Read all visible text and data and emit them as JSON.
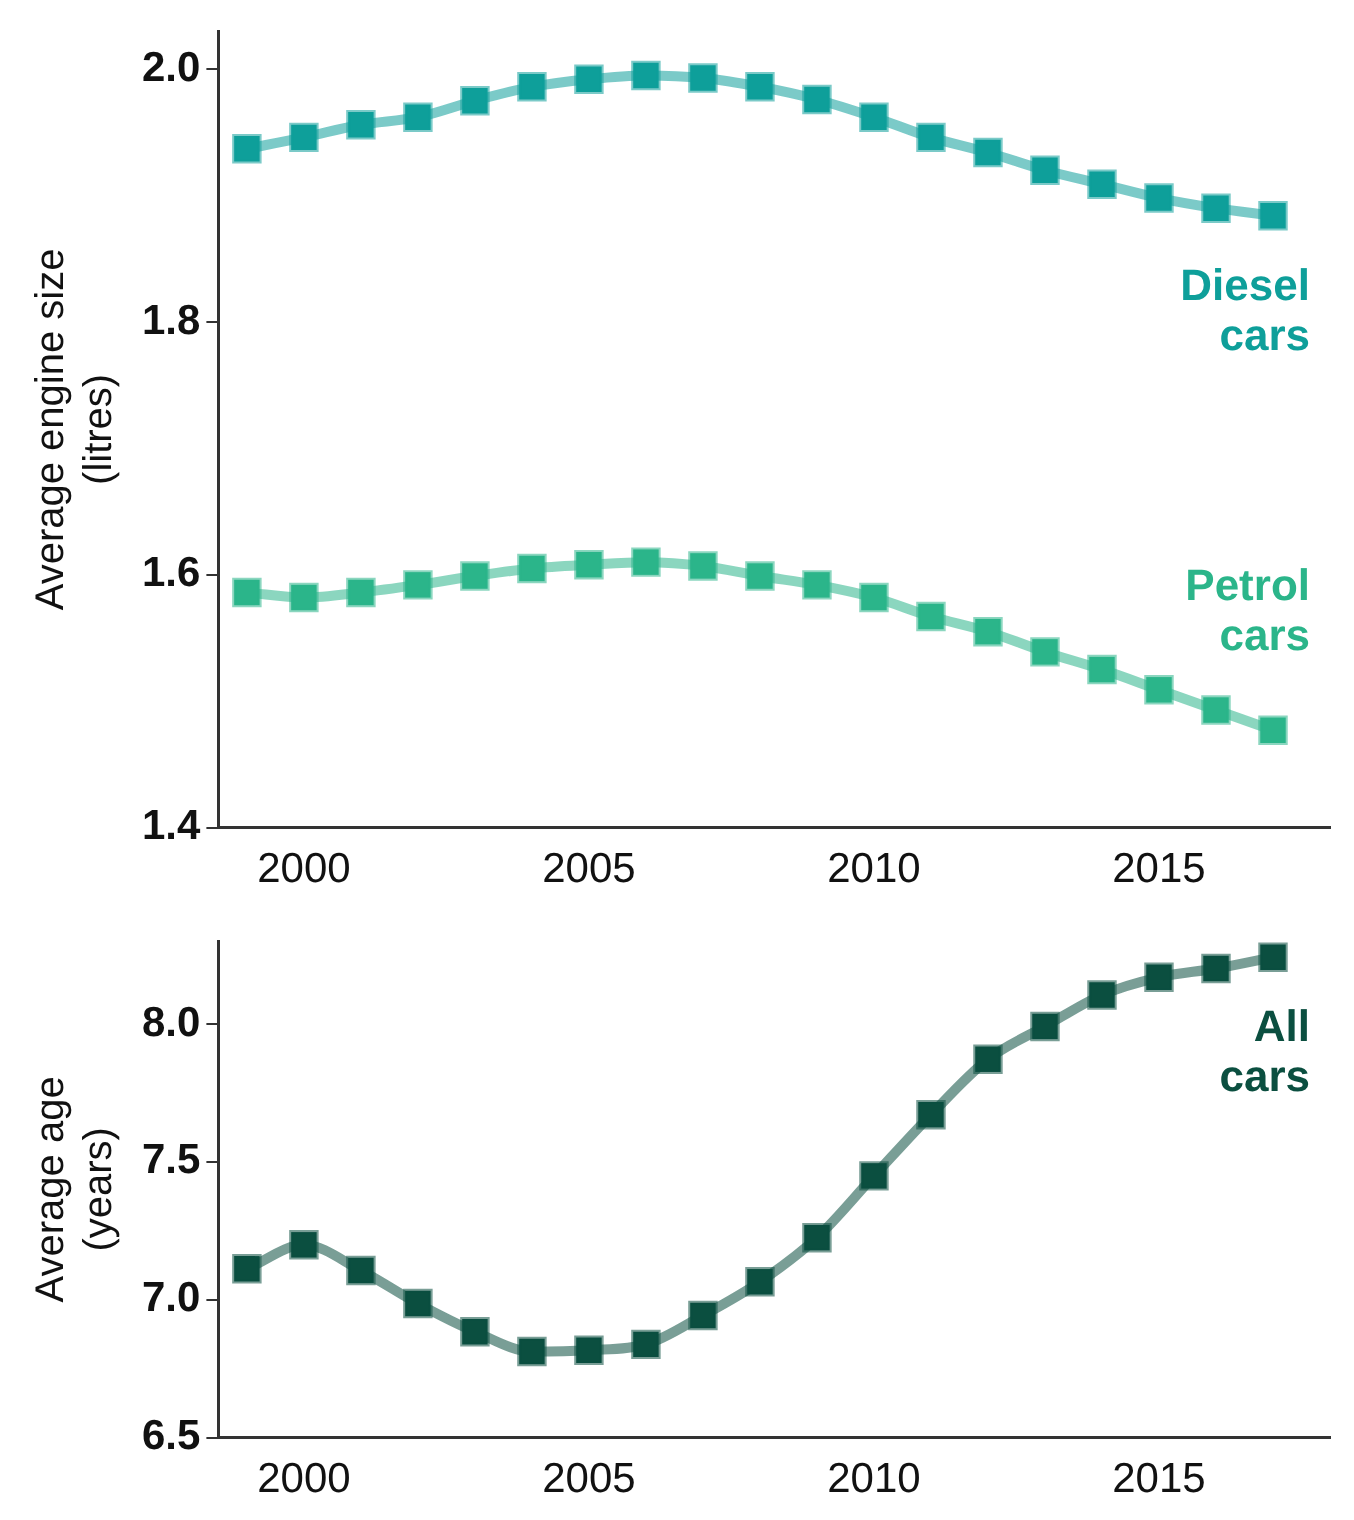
{
  "chart_data": [
    {
      "type": "line",
      "ylabel": "Average engine size\n(litres)",
      "x": [
        1999,
        2000,
        2001,
        2002,
        2003,
        2004,
        2005,
        2006,
        2007,
        2008,
        2009,
        2010,
        2011,
        2012,
        2013,
        2014,
        2015,
        2016,
        2017
      ],
      "series": [
        {
          "name": "Diesel\ncars",
          "color": "#0e9f9a",
          "values": [
            1.937,
            1.946,
            1.956,
            1.962,
            1.975,
            1.986,
            1.992,
            1.995,
            1.993,
            1.986,
            1.976,
            1.962,
            1.946,
            1.934,
            1.92,
            1.909,
            1.898,
            1.89,
            1.884
          ]
        },
        {
          "name": "Petrol\ncars",
          "color": "#2bb58a",
          "values": [
            1.586,
            1.582,
            1.586,
            1.592,
            1.599,
            1.605,
            1.608,
            1.61,
            1.607,
            1.599,
            1.592,
            1.582,
            1.567,
            1.555,
            1.539,
            1.525,
            1.509,
            1.493,
            1.477
          ]
        }
      ],
      "xlim": [
        1998.5,
        2018
      ],
      "xticks": [
        2000,
        2005,
        2010,
        2015
      ],
      "ylim": [
        1.4,
        2.03
      ],
      "yticks": [
        {
          "value": 1.4,
          "label": "1.4"
        },
        {
          "value": 1.6,
          "label": "1.6"
        },
        {
          "value": 1.8,
          "label": "1.8"
        },
        {
          "value": 2.0,
          "label": "2.0"
        }
      ],
      "grid": false,
      "legend": false,
      "marker": "square",
      "line_style": "solid"
    },
    {
      "type": "line",
      "ylabel": "Average age\n(years)",
      "x": [
        1999,
        2000,
        2001,
        2002,
        2003,
        2004,
        2005,
        2006,
        2007,
        2008,
        2009,
        2010,
        2011,
        2012,
        2013,
        2014,
        2015,
        2016,
        2017
      ],
      "series": [
        {
          "name": "All\ncars",
          "color": "#0b4f40",
          "values": [
            7.112,
            7.199,
            7.106,
            6.986,
            6.884,
            6.812,
            6.817,
            6.838,
            6.943,
            7.065,
            7.225,
            7.449,
            7.671,
            7.872,
            7.991,
            8.105,
            8.169,
            8.201,
            8.242
          ]
        }
      ],
      "xlim": [
        1998.5,
        2018
      ],
      "xticks": [
        2000,
        2005,
        2010,
        2015
      ],
      "ylim": [
        6.5,
        8.3
      ],
      "yticks": [
        {
          "value": 6.5,
          "label": "6.5"
        },
        {
          "value": 7.0,
          "label": "7.0"
        },
        {
          "value": 7.5,
          "label": "7.5"
        },
        {
          "value": 8.0,
          "label": "8.0"
        }
      ],
      "grid": false,
      "legend": false,
      "marker": "square",
      "line_style": "solid"
    }
  ]
}
